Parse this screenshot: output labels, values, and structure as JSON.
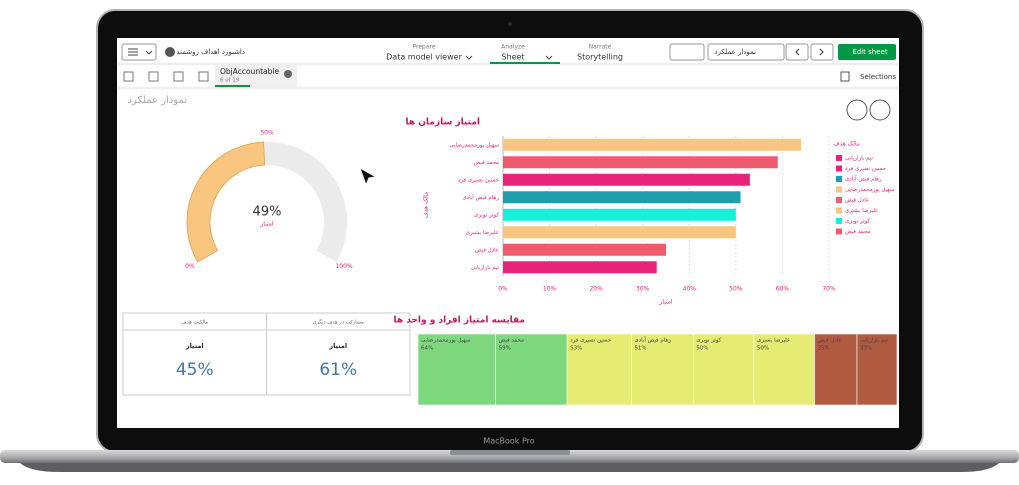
{
  "toolbar": {
    "app_name": "داشبورد اهداف روشمند",
    "tabs": [
      {
        "step": "Prepare",
        "label": "Data model viewer"
      },
      {
        "step": "Analyze",
        "label": "Sheet"
      },
      {
        "step": "Narrate",
        "label": "Storytelling"
      }
    ],
    "sheet_name": "نمودار عملکرد",
    "edit_button": "Edit sheet"
  },
  "subbar": {
    "object": "ObjAccountable",
    "position": "6 of 19",
    "selections": "Selections"
  },
  "sheet_title": "نمودار عملکرد",
  "device_label": "MacBook Pro",
  "chart_data": [
    {
      "type": "gauge",
      "values": [
        49
      ],
      "value_labels": [
        "49%"
      ],
      "label": "امتیاز",
      "ylim": [
        0,
        100
      ],
      "yticks": [
        {
          "value": 0,
          "label": "0%"
        },
        {
          "value": 50,
          "label": "50%"
        },
        {
          "value": 100,
          "label": "100%"
        }
      ],
      "color": "#f8c67f",
      "track_color": "#ebebeb"
    },
    {
      "type": "bar",
      "orientation": "horizontal",
      "title": "امتیاز سازمان ها",
      "y_label": "مالک هدف",
      "x_label": "امتیاز",
      "categories": [
        "سهیل پورمحمدرضایی",
        "محمد فیض",
        "حسین نصیری فرد",
        "رهام فیض آبادی",
        "کوثر نوبری",
        "علیرضا بشیری",
        "عادل فیض",
        "تیم بازاریابی"
      ],
      "values": [
        64,
        59,
        53,
        51,
        50,
        50,
        35,
        33
      ],
      "colors": [
        "#f8c67f",
        "#ee5a6e",
        "#e8247a",
        "#1f9fae",
        "#16f0d8",
        "#f8c67f",
        "#ee5a6e",
        "#e8247a"
      ],
      "xlim": [
        0,
        70
      ],
      "xticks": [
        {
          "value": 0,
          "label": "0%"
        },
        {
          "value": 10,
          "label": "10%"
        },
        {
          "value": 20,
          "label": "20%"
        },
        {
          "value": 30,
          "label": "30%"
        },
        {
          "value": 40,
          "label": "40%"
        },
        {
          "value": 50,
          "label": "50%"
        },
        {
          "value": 60,
          "label": "60%"
        },
        {
          "value": 70,
          "label": "70%"
        }
      ],
      "grid": true,
      "legend": {
        "title": "مالک هدف",
        "position": "right",
        "entries": [
          {
            "name": "تیم بازاریابی",
            "color": "#e8247a"
          },
          {
            "name": "حسین نصیری فرد",
            "color": "#e8247a"
          },
          {
            "name": "رهام فیض آبادی",
            "color": "#1f9fae"
          },
          {
            "name": "سهیل پورمحمدرضایی",
            "color": "#f8c67f"
          },
          {
            "name": "عادل فیض",
            "color": "#ee5a6e"
          },
          {
            "name": "علیرضا بشیری",
            "color": "#f8c67f"
          },
          {
            "name": "کوثر نوبری",
            "color": "#16f0d8"
          },
          {
            "name": "محمد فیض",
            "color": "#ee5a6e"
          }
        ]
      }
    },
    {
      "type": "kpi",
      "headers": [
        "مالکیت هدف",
        "مشارکت در هدف دیگری"
      ],
      "labels": [
        "امتیاز",
        "امتیاز"
      ],
      "values": [
        45,
        61
      ],
      "value_labels": [
        "45%",
        "61%"
      ],
      "color": "#4477aa"
    },
    {
      "type": "treemap",
      "title": "مقایسه امتیاز افراد و واحد ها",
      "categories": [
        "سهیل پورمحمدرضایی",
        "محمد فیض",
        "حسین نصیری فرد",
        "رهام فیض آبادی",
        "کوثر نوبری",
        "علیرضا بشیری",
        "عادل فیض",
        "تیم بازاریابی"
      ],
      "values": [
        64,
        59,
        53,
        51,
        50,
        50,
        35,
        33
      ],
      "value_labels": [
        "64%",
        "59%",
        "53%",
        "51%",
        "50%",
        "50%",
        "35%",
        "33%"
      ],
      "colors": [
        "#7ed87e",
        "#7ed87e",
        "#e6ec72",
        "#e6ec72",
        "#e6ec72",
        "#e6ec72",
        "#b05a40",
        "#b05a40"
      ]
    }
  ]
}
